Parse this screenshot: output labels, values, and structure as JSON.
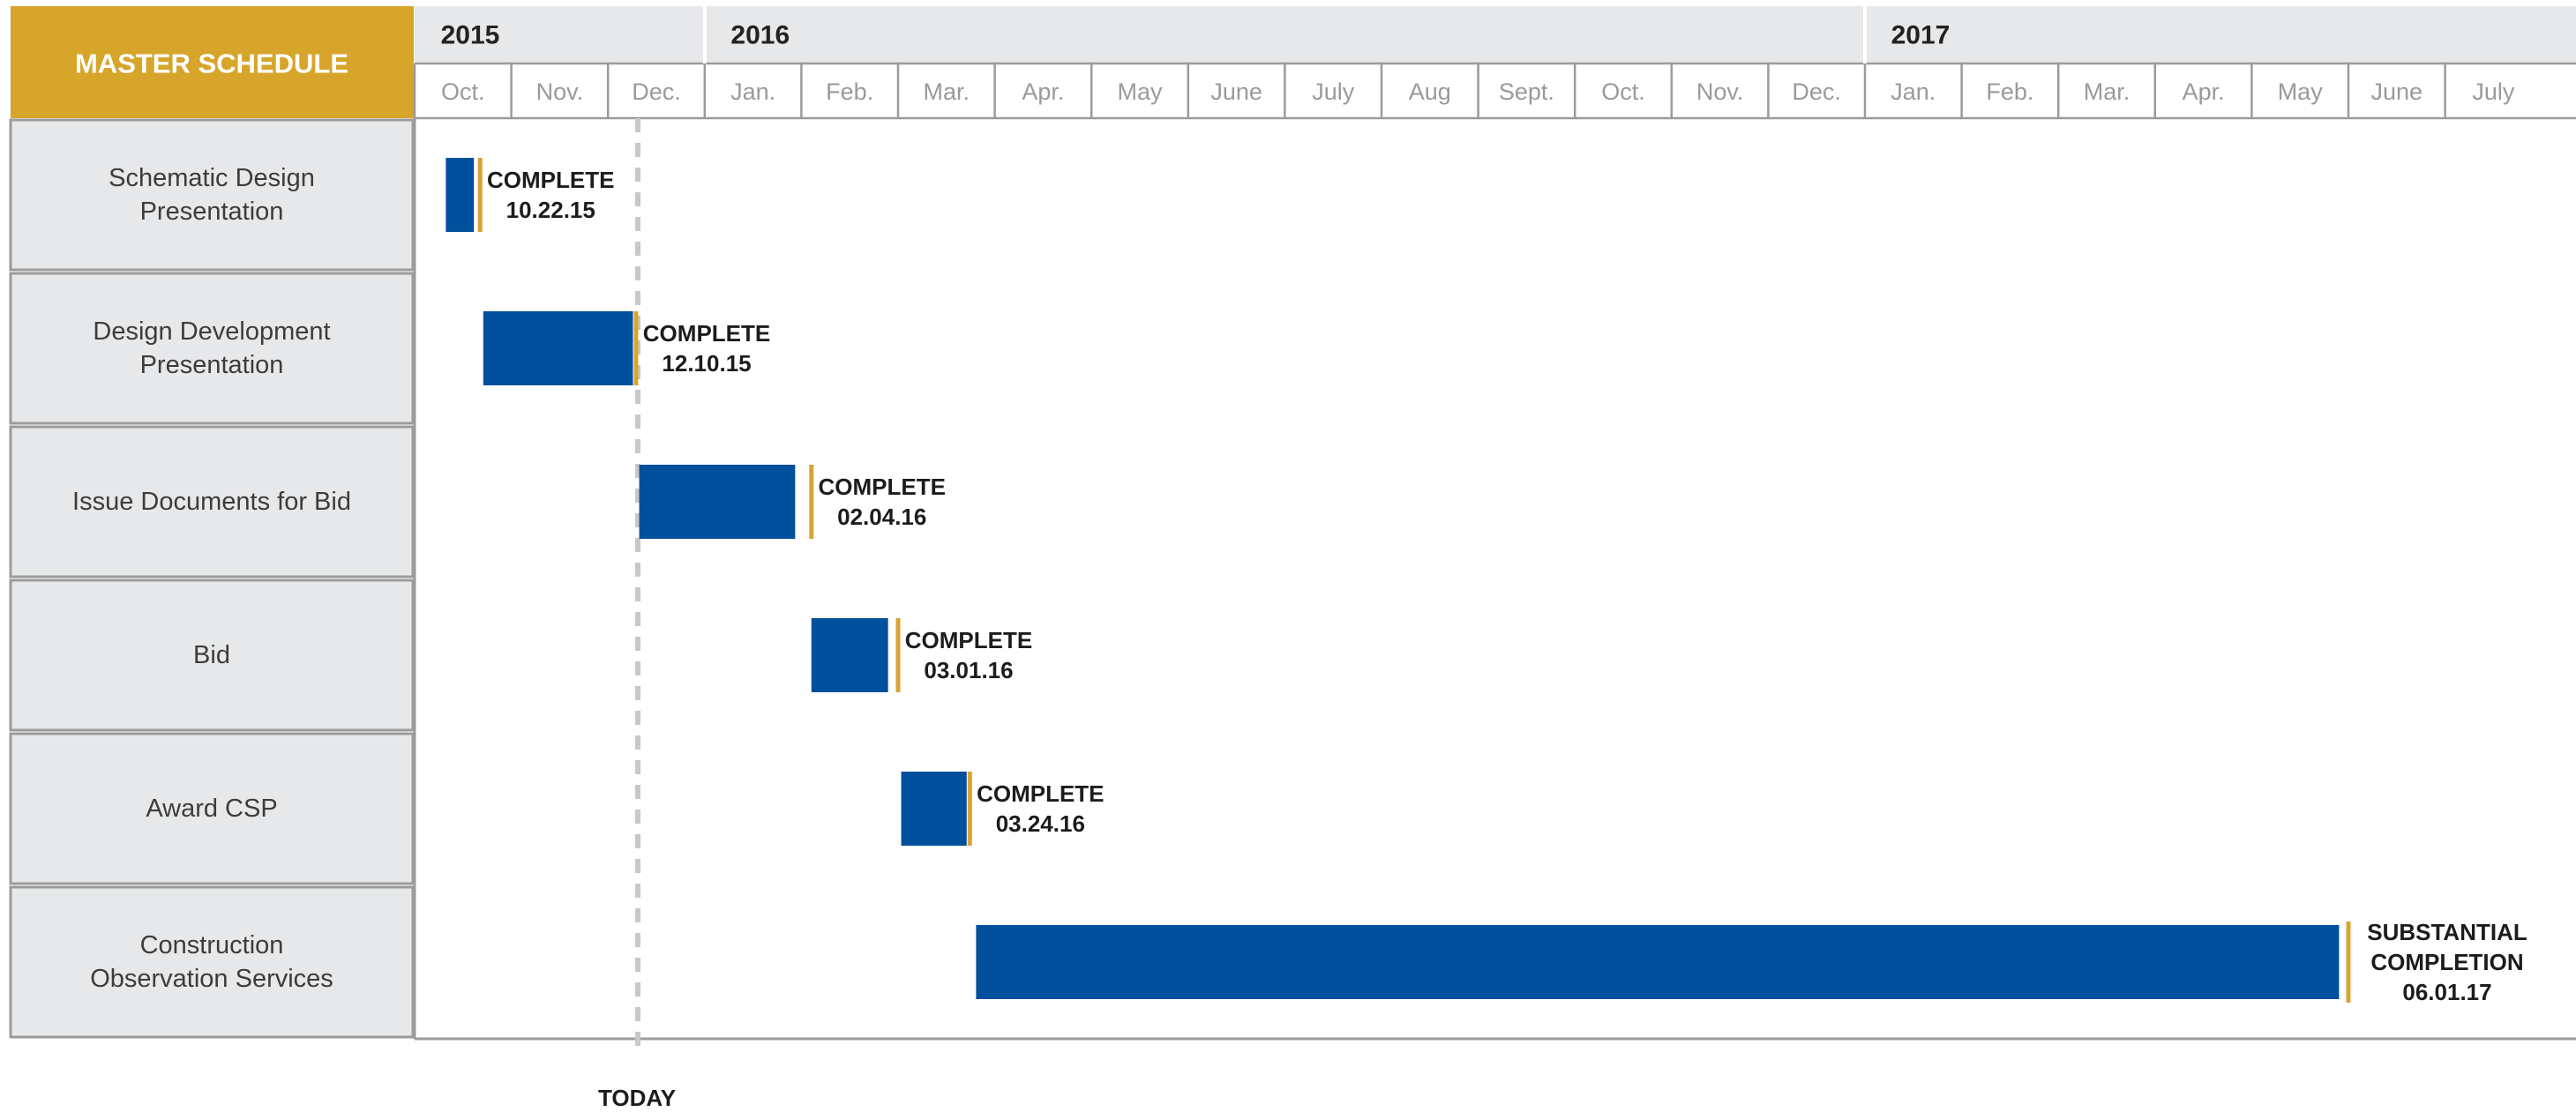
{
  "chart_data": {
    "type": "gantt",
    "title": "MASTER SCHEDULE",
    "years": [
      {
        "label": "2015",
        "start_month": "2015-10"
      },
      {
        "label": "2016",
        "start_month": "2016-01"
      },
      {
        "label": "2017",
        "start_month": "2017-01"
      }
    ],
    "months": [
      {
        "label": "Oct.",
        "month": "2015-10"
      },
      {
        "label": "Nov.",
        "month": "2015-11"
      },
      {
        "label": "Dec.",
        "month": "2015-12"
      },
      {
        "label": "Jan.",
        "month": "2016-01"
      },
      {
        "label": "Feb.",
        "month": "2016-02"
      },
      {
        "label": "Mar.",
        "month": "2016-03"
      },
      {
        "label": "Apr.",
        "month": "2016-04"
      },
      {
        "label": "May",
        "month": "2016-05"
      },
      {
        "label": "June",
        "month": "2016-06"
      },
      {
        "label": "July",
        "month": "2016-07"
      },
      {
        "label": "Aug",
        "month": "2016-08"
      },
      {
        "label": "Sept.",
        "month": "2016-09"
      },
      {
        "label": "Oct.",
        "month": "2016-10"
      },
      {
        "label": "Nov.",
        "month": "2016-11"
      },
      {
        "label": "Dec.",
        "month": "2016-12"
      },
      {
        "label": "Jan.",
        "month": "2017-01"
      },
      {
        "label": "Feb.",
        "month": "2017-02"
      },
      {
        "label": "Mar.",
        "month": "2017-03"
      },
      {
        "label": "Apr.",
        "month": "2017-04"
      },
      {
        "label": "May",
        "month": "2017-05"
      },
      {
        "label": "June",
        "month": "2017-06"
      },
      {
        "label": "July",
        "month": "2017-07"
      }
    ],
    "tasks": [
      {
        "lines": [
          "Schematic Design",
          "Presentation"
        ],
        "start": "2015-10-11",
        "end": "2015-10-20",
        "milestone": "2015-10-22",
        "status_lines": [
          "COMPLETE",
          "10.22.15"
        ]
      },
      {
        "lines": [
          "Design Development",
          "Presentation"
        ],
        "start": "2015-10-23",
        "end": "2015-12-09",
        "milestone": "2015-12-10",
        "status_lines": [
          "COMPLETE",
          "12.10.15"
        ]
      },
      {
        "lines": [
          "Issue Documents for Bid"
        ],
        "start": "2015-12-11",
        "end": "2016-01-30",
        "milestone": "2016-02-04",
        "status_lines": [
          "COMPLETE",
          "02.04.16"
        ]
      },
      {
        "lines": [
          "Bid"
        ],
        "start": "2016-02-04",
        "end": "2016-02-27",
        "milestone": "2016-03-01",
        "status_lines": [
          "COMPLETE",
          "03.01.16"
        ]
      },
      {
        "lines": [
          "Award CSP"
        ],
        "start": "2016-03-02",
        "end": "2016-03-23",
        "milestone": "2016-03-24",
        "status_lines": [
          "COMPLETE",
          "03.24.16"
        ]
      },
      {
        "lines": [
          "Construction",
          "Observation Services"
        ],
        "start": "2016-03-26",
        "end": "2017-05-29",
        "milestone": "2017-06-01",
        "status_lines": [
          "SUBSTANTIAL",
          "COMPLETION",
          "06.01.17"
        ]
      }
    ],
    "today": {
      "label": "TODAY",
      "date": "2015-12-10"
    },
    "colors": {
      "header": "#D6A52A",
      "bar": "#00509D",
      "milestone": "#D9A532",
      "label_bg": "#E7E8EA",
      "grid": "#9B9B9B",
      "today_line": "#C8C8C8"
    }
  }
}
